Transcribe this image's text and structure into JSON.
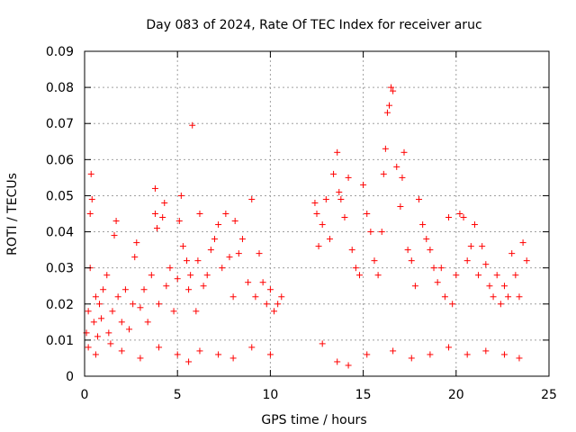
{
  "chart_data": {
    "type": "scatter",
    "title": "Day 083 of 2024, Rate Of TEC Index for receiver aruc",
    "xlabel": "GPS time / hours",
    "ylabel": "ROTI / TECUs",
    "xlim": [
      0,
      25
    ],
    "ylim": [
      0,
      0.09
    ],
    "xticks": [
      "0",
      "5",
      "10",
      "15",
      "20",
      "25"
    ],
    "yticks": [
      "0",
      "0.01",
      "0.02",
      "0.03",
      "0.04",
      "0.05",
      "0.06",
      "0.07",
      "0.08",
      "0.09"
    ],
    "grid": true,
    "marker": "plus",
    "color": "#ff0000",
    "series": [
      {
        "x": [
          0.1,
          0.2,
          0.3,
          0.3,
          0.35,
          0.4,
          0.5,
          0.6,
          0.7,
          0.8,
          0.9,
          1.0,
          1.2,
          1.3,
          1.5,
          1.6,
          1.7,
          1.8,
          2.0,
          2.2,
          2.4,
          2.6,
          2.7,
          2.8,
          3.0,
          3.2,
          3.4,
          3.6,
          3.8,
          3.8,
          3.9,
          4.0,
          4.2,
          4.3,
          4.4,
          4.6,
          4.8,
          5.0,
          5.1,
          5.2,
          5.3,
          5.5,
          5.6,
          5.7,
          5.8,
          6.0,
          6.1,
          6.2,
          6.4,
          6.6,
          6.8,
          7.0,
          7.2,
          7.4,
          7.6,
          7.8,
          8.0,
          8.1,
          8.3,
          8.5,
          8.8,
          9.0,
          9.2,
          9.4,
          9.6,
          9.8,
          10.0,
          10.2,
          10.4,
          10.6,
          12.4,
          12.5,
          12.6,
          12.8,
          13.0,
          13.2,
          13.4,
          13.6,
          13.7,
          13.8,
          14.0,
          14.2,
          14.4,
          14.6,
          14.8,
          15.0,
          15.2,
          15.4,
          15.6,
          15.8,
          16.0,
          16.1,
          16.2,
          16.3,
          16.4,
          16.5,
          16.6,
          16.8,
          17.0,
          17.1,
          17.2,
          17.4,
          17.6,
          17.8,
          18.0,
          18.2,
          18.4,
          18.6,
          18.8,
          19.0,
          19.2,
          19.4,
          19.6,
          19.8,
          20.0,
          20.2,
          20.4,
          20.6,
          20.8,
          21.0,
          21.2,
          21.4,
          21.6,
          21.8,
          22.0,
          22.2,
          22.4,
          22.6,
          22.8,
          23.0,
          23.2,
          23.4,
          23.6,
          23.8,
          0.2,
          0.6,
          1.4,
          2.0,
          3.0,
          4.0,
          5.0,
          5.6,
          6.2,
          7.2,
          8.0,
          9.0,
          10.0,
          12.8,
          13.6,
          14.2,
          15.2,
          16.6,
          17.6,
          18.6,
          19.6,
          20.6,
          21.6,
          22.6,
          23.4
        ],
        "y": [
          0.012,
          0.018,
          0.045,
          0.03,
          0.056,
          0.049,
          0.015,
          0.022,
          0.011,
          0.02,
          0.016,
          0.024,
          0.028,
          0.012,
          0.018,
          0.039,
          0.043,
          0.022,
          0.015,
          0.024,
          0.013,
          0.02,
          0.033,
          0.037,
          0.019,
          0.024,
          0.015,
          0.028,
          0.052,
          0.045,
          0.041,
          0.02,
          0.044,
          0.048,
          0.025,
          0.03,
          0.018,
          0.027,
          0.043,
          0.05,
          0.036,
          0.032,
          0.024,
          0.028,
          0.0695,
          0.018,
          0.032,
          0.045,
          0.025,
          0.028,
          0.035,
          0.038,
          0.042,
          0.03,
          0.045,
          0.033,
          0.022,
          0.043,
          0.034,
          0.038,
          0.026,
          0.049,
          0.022,
          0.034,
          0.026,
          0.02,
          0.024,
          0.018,
          0.02,
          0.022,
          0.048,
          0.045,
          0.036,
          0.042,
          0.049,
          0.038,
          0.056,
          0.062,
          0.051,
          0.049,
          0.044,
          0.055,
          0.035,
          0.03,
          0.028,
          0.053,
          0.045,
          0.04,
          0.032,
          0.028,
          0.04,
          0.056,
          0.063,
          0.073,
          0.075,
          0.08,
          0.079,
          0.058,
          0.047,
          0.055,
          0.062,
          0.035,
          0.032,
          0.025,
          0.049,
          0.042,
          0.038,
          0.035,
          0.03,
          0.026,
          0.03,
          0.022,
          0.044,
          0.02,
          0.028,
          0.045,
          0.044,
          0.032,
          0.036,
          0.042,
          0.028,
          0.036,
          0.031,
          0.025,
          0.022,
          0.028,
          0.02,
          0.025,
          0.022,
          0.034,
          0.028,
          0.022,
          0.037,
          0.032,
          0.008,
          0.006,
          0.009,
          0.007,
          0.005,
          0.008,
          0.006,
          0.004,
          0.007,
          0.006,
          0.005,
          0.008,
          0.006,
          0.009,
          0.004,
          0.003,
          0.006,
          0.007,
          0.005,
          0.006,
          0.008,
          0.006,
          0.007,
          0.006,
          0.005
        ]
      }
    ]
  }
}
